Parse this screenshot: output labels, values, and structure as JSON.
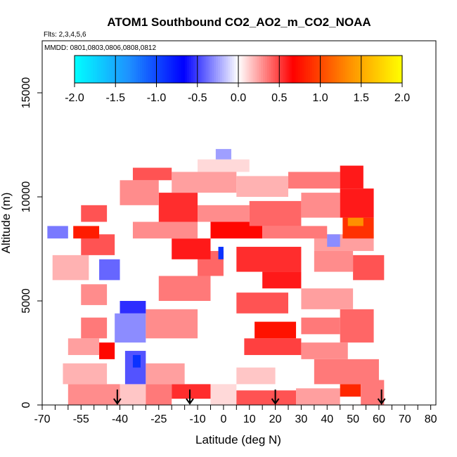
{
  "chart_data": {
    "type": "heatmap",
    "title": "ATOM1 Southbound CO2_AO2_m_CO2_NOAA",
    "flights_note": "Flts: 2,3,4,5,6",
    "dates_note": "MMDD: 0801,0803,0806,0808,0812",
    "xlabel": "Latitude (deg N)",
    "ylabel": "Altitude (m)",
    "xlim": [
      -70,
      82
    ],
    "ylim": [
      0,
      17500
    ],
    "x_ticks": [
      -70,
      -55,
      -40,
      -25,
      -10,
      0,
      10,
      20,
      30,
      40,
      50,
      60,
      70,
      80
    ],
    "x_tick_labels": [
      "-70",
      "-55",
      "-40",
      "-25",
      "-10",
      "0",
      "10",
      "20",
      "30",
      "40",
      "50",
      "60",
      "70",
      "80"
    ],
    "x_minor_ticks": [
      -65,
      -60,
      -50,
      -45,
      -35,
      -30,
      -20,
      -15,
      -5,
      5,
      15,
      25,
      35,
      45,
      55,
      65,
      75
    ],
    "y_ticks": [
      0,
      5000,
      10000,
      15000
    ],
    "y_tick_labels": [
      "0",
      "5000",
      "10000",
      "15000"
    ],
    "colorbar": {
      "min": -2.0,
      "max": 2.0,
      "ticks": [
        -2.0,
        -1.5,
        -1.0,
        -0.5,
        0.0,
        0.5,
        1.0,
        1.5,
        2.0
      ],
      "tick_labels": [
        "-2.0",
        "-1.5",
        "-1.0",
        "-0.5",
        "0.0",
        "0.5",
        "1.0",
        "1.5",
        "2.0"
      ],
      "colors": [
        "#00ffff",
        "#1e90ff",
        "#0000ff",
        "#ffffff",
        "#ff0000",
        "#ff8c00",
        "#ffff00"
      ]
    },
    "arrows_latitude": [
      -41,
      -13,
      20,
      61
    ],
    "cells": [
      {
        "lat0": -60,
        "lat1": -40,
        "alt0": 0,
        "alt1": 1000,
        "value": 0.3
      },
      {
        "lat0": -40,
        "lat1": -30,
        "alt0": 0,
        "alt1": 1000,
        "value": 0.15
      },
      {
        "lat0": -30,
        "lat1": -20,
        "alt0": 0,
        "alt1": 1000,
        "value": 0.35
      },
      {
        "lat0": -20,
        "lat1": -5,
        "alt0": 300,
        "alt1": 1000,
        "value": 0.55
      },
      {
        "lat0": -5,
        "lat1": 5,
        "alt0": 0,
        "alt1": 1000,
        "value": 0.1
      },
      {
        "lat0": 5,
        "lat1": 28,
        "alt0": 0,
        "alt1": 700,
        "value": 0.45
      },
      {
        "lat0": 28,
        "lat1": 45,
        "alt0": 0,
        "alt1": 800,
        "value": 0.25
      },
      {
        "lat0": 45,
        "lat1": 53,
        "alt0": 400,
        "alt1": 1000,
        "value": 0.85
      },
      {
        "lat0": 53,
        "lat1": 62,
        "alt0": 0,
        "alt1": 1200,
        "value": 0.35
      },
      {
        "lat0": -62,
        "lat1": -45,
        "alt0": 1000,
        "alt1": 2000,
        "value": 0.2
      },
      {
        "lat0": -38,
        "lat1": -30,
        "alt0": 1000,
        "alt1": 2600,
        "value": -0.45
      },
      {
        "lat0": -30,
        "lat1": -15,
        "alt0": 1000,
        "alt1": 2000,
        "value": 0.25
      },
      {
        "lat0": 5,
        "lat1": 20,
        "alt0": 1000,
        "alt1": 1800,
        "value": 0.15
      },
      {
        "lat0": 35,
        "lat1": 60,
        "alt0": 1000,
        "alt1": 2200,
        "value": 0.35
      },
      {
        "lat0": -35,
        "lat1": -32,
        "alt0": 1800,
        "alt1": 2400,
        "value": -0.9
      },
      {
        "lat0": -48,
        "lat1": -42,
        "alt0": 2200,
        "alt1": 3000,
        "value": 0.7
      },
      {
        "lat0": -60,
        "lat1": -48,
        "alt0": 2400,
        "alt1": 3200,
        "value": 0.25
      },
      {
        "lat0": 8,
        "lat1": 30,
        "alt0": 2400,
        "alt1": 3200,
        "value": 0.5
      },
      {
        "lat0": 30,
        "lat1": 48,
        "alt0": 2200,
        "alt1": 3000,
        "value": 0.3
      },
      {
        "lat0": -55,
        "lat1": -45,
        "alt0": 3200,
        "alt1": 4200,
        "value": 0.35
      },
      {
        "lat0": -42,
        "lat1": -30,
        "alt0": 3000,
        "alt1": 4400,
        "value": -0.3
      },
      {
        "lat0": -30,
        "lat1": -10,
        "alt0": 3200,
        "alt1": 4600,
        "value": 0.3
      },
      {
        "lat0": 12,
        "lat1": 28,
        "alt0": 3200,
        "alt1": 4000,
        "value": 0.75
      },
      {
        "lat0": 30,
        "lat1": 45,
        "alt0": 3400,
        "alt1": 4200,
        "value": 0.35
      },
      {
        "lat0": 45,
        "lat1": 58,
        "alt0": 3000,
        "alt1": 4600,
        "value": 0.4
      },
      {
        "lat0": -40,
        "lat1": -30,
        "alt0": 4400,
        "alt1": 5000,
        "value": -0.55
      },
      {
        "lat0": -55,
        "lat1": -45,
        "alt0": 4800,
        "alt1": 5800,
        "value": 0.3
      },
      {
        "lat0": 5,
        "lat1": 25,
        "alt0": 4400,
        "alt1": 5400,
        "value": 0.45
      },
      {
        "lat0": 30,
        "lat1": 50,
        "alt0": 4600,
        "alt1": 5600,
        "value": 0.25
      },
      {
        "lat0": -25,
        "lat1": -5,
        "alt0": 5000,
        "alt1": 6200,
        "value": 0.35
      },
      {
        "lat0": 15,
        "lat1": 30,
        "alt0": 5600,
        "alt1": 6400,
        "value": 0.6
      },
      {
        "lat0": -66,
        "lat1": -52,
        "alt0": 6000,
        "alt1": 7200,
        "value": 0.2
      },
      {
        "lat0": -48,
        "lat1": -40,
        "alt0": 6000,
        "alt1": 7000,
        "value": -0.4
      },
      {
        "lat0": -10,
        "lat1": 0,
        "alt0": 6200,
        "alt1": 7400,
        "value": 0.4
      },
      {
        "lat0": 5,
        "lat1": 30,
        "alt0": 6400,
        "alt1": 7600,
        "value": 0.55
      },
      {
        "lat0": 35,
        "lat1": 50,
        "alt0": 6400,
        "alt1": 7400,
        "value": 0.3
      },
      {
        "lat0": 50,
        "lat1": 62,
        "alt0": 6000,
        "alt1": 7200,
        "value": 0.45
      },
      {
        "lat0": -2,
        "lat1": 0,
        "alt0": 7000,
        "alt1": 7600,
        "value": -0.9
      },
      {
        "lat0": -20,
        "lat1": -5,
        "alt0": 7000,
        "alt1": 8000,
        "value": 0.6
      },
      {
        "lat0": -55,
        "lat1": -42,
        "alt0": 7200,
        "alt1": 8200,
        "value": 0.45
      },
      {
        "lat0": 35,
        "lat1": 58,
        "alt0": 7400,
        "alt1": 8200,
        "value": 0.25
      },
      {
        "lat0": -68,
        "lat1": -60,
        "alt0": 8000,
        "alt1": 8600,
        "value": -0.35
      },
      {
        "lat0": -58,
        "lat1": -48,
        "alt0": 8000,
        "alt1": 8600,
        "value": 0.8
      },
      {
        "lat0": -35,
        "lat1": -10,
        "alt0": 8000,
        "alt1": 8800,
        "value": 0.3
      },
      {
        "lat0": -5,
        "lat1": 15,
        "alt0": 8000,
        "alt1": 8800,
        "value": 0.7
      },
      {
        "lat0": 15,
        "lat1": 40,
        "alt0": 8000,
        "alt1": 8600,
        "value": 0.35
      },
      {
        "lat0": 40,
        "lat1": 45,
        "alt0": 7600,
        "alt1": 8200,
        "value": -0.3
      },
      {
        "lat0": 46,
        "lat1": 58,
        "alt0": 8000,
        "alt1": 9000,
        "value": 0.9
      },
      {
        "lat0": 48,
        "lat1": 54,
        "alt0": 8600,
        "alt1": 9000,
        "value": 1.35
      },
      {
        "lat0": -25,
        "lat1": -10,
        "alt0": 8800,
        "alt1": 10200,
        "value": 0.55
      },
      {
        "lat0": -55,
        "lat1": -45,
        "alt0": 8800,
        "alt1": 9600,
        "value": 0.45
      },
      {
        "lat0": -10,
        "lat1": 10,
        "alt0": 8800,
        "alt1": 9600,
        "value": 0.3
      },
      {
        "lat0": 10,
        "lat1": 30,
        "alt0": 8600,
        "alt1": 9800,
        "value": 0.4
      },
      {
        "lat0": 30,
        "lat1": 45,
        "alt0": 9000,
        "alt1": 10200,
        "value": 0.3
      },
      {
        "lat0": 45,
        "lat1": 58,
        "alt0": 9000,
        "alt1": 10400,
        "value": 0.6
      },
      {
        "lat0": -40,
        "lat1": -25,
        "alt0": 9600,
        "alt1": 10800,
        "value": 0.3
      },
      {
        "lat0": -20,
        "lat1": 5,
        "alt0": 10200,
        "alt1": 11200,
        "value": 0.25
      },
      {
        "lat0": 5,
        "lat1": 25,
        "alt0": 10000,
        "alt1": 11000,
        "value": 0.2
      },
      {
        "lat0": 25,
        "lat1": 45,
        "alt0": 10400,
        "alt1": 11200,
        "value": 0.35
      },
      {
        "lat0": 45,
        "lat1": 54,
        "alt0": 10400,
        "alt1": 11500,
        "value": 0.6
      },
      {
        "lat0": -35,
        "lat1": -20,
        "alt0": 10800,
        "alt1": 11400,
        "value": 0.45
      },
      {
        "lat0": -10,
        "lat1": 10,
        "alt0": 11200,
        "alt1": 11800,
        "value": 0.1
      },
      {
        "lat0": -3,
        "lat1": 3,
        "alt0": 11800,
        "alt1": 12300,
        "value": -0.25
      }
    ]
  }
}
